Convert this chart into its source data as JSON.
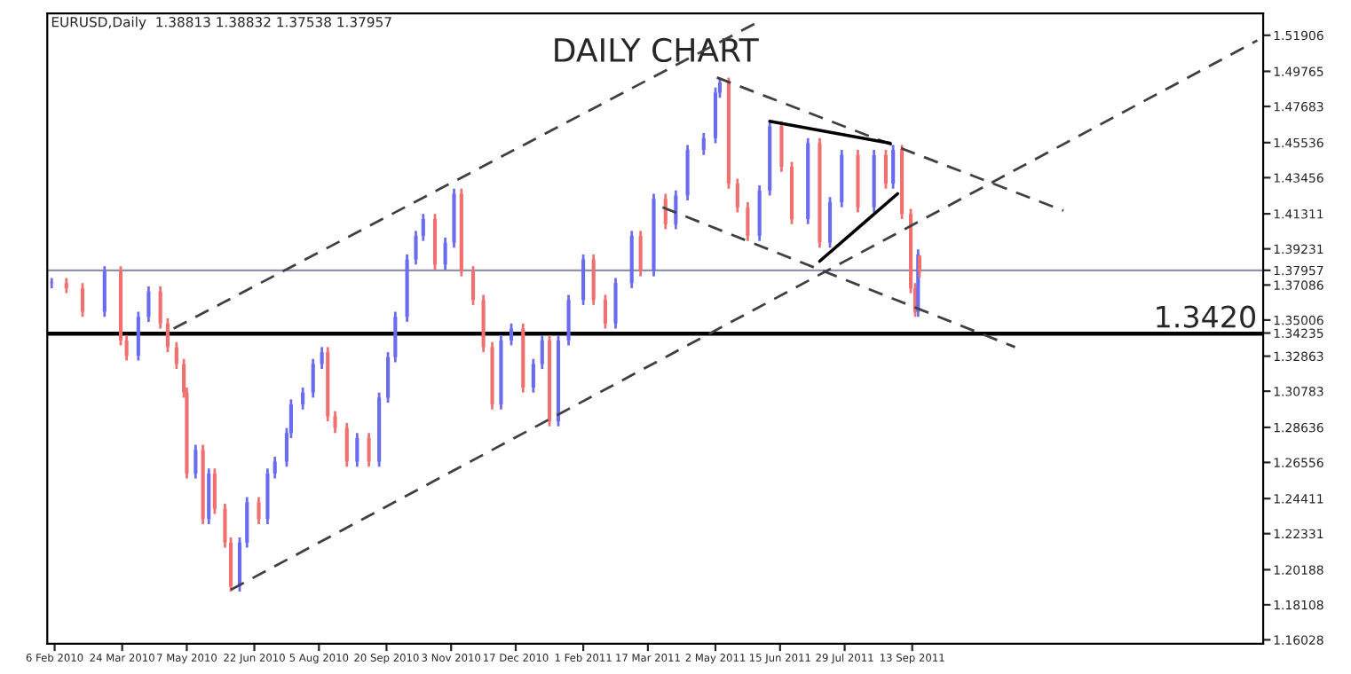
{
  "chart_data": {
    "type": "candlestick",
    "title": "DAILY CHART",
    "subtitle": "EURUSD,Daily  1.38813 1.38832 1.37538 1.37957",
    "x": [
      "2010-02-04",
      "2010-02-14",
      "2010-02-25",
      "2010-03-12",
      "2010-03-23",
      "2010-03-27",
      "2010-04-04",
      "2010-04-11",
      "2010-04-19",
      "2010-04-24",
      "2010-04-30",
      "2010-05-05",
      "2010-05-07",
      "2010-05-13",
      "2010-05-18",
      "2010-05-22",
      "2010-05-26",
      "2010-06-02",
      "2010-06-06",
      "2010-06-12",
      "2010-06-17",
      "2010-06-25",
      "2010-07-01",
      "2010-07-06",
      "2010-07-14",
      "2010-07-17",
      "2010-07-25",
      "2010-08-01",
      "2010-08-07",
      "2010-08-11",
      "2010-08-16",
      "2010-08-24",
      "2010-08-31",
      "2010-09-08",
      "2010-09-15",
      "2010-09-21",
      "2010-09-26",
      "2010-10-04",
      "2010-10-10",
      "2010-10-15",
      "2010-10-23",
      "2010-10-30",
      "2010-11-05",
      "2010-11-10",
      "2010-11-18",
      "2010-11-25",
      "2010-12-01",
      "2010-12-07",
      "2010-12-14",
      "2010-12-22",
      "2010-12-29",
      "2011-01-04",
      "2011-01-09",
      "2011-01-15",
      "2011-01-22",
      "2011-02-01",
      "2011-02-08",
      "2011-02-16",
      "2011-02-23",
      "2011-03-06",
      "2011-03-12",
      "2011-03-21",
      "2011-03-29",
      "2011-04-05",
      "2011-04-13",
      "2011-04-24",
      "2011-05-02",
      "2011-05-05",
      "2011-05-11",
      "2011-05-17",
      "2011-05-24",
      "2011-06-01",
      "2011-06-08",
      "2011-06-16",
      "2011-06-23",
      "2011-07-04",
      "2011-07-12",
      "2011-07-19",
      "2011-07-27",
      "2011-08-07",
      "2011-08-18",
      "2011-08-26",
      "2011-08-31",
      "2011-09-06",
      "2011-09-12",
      "2011-09-15",
      "2011-09-17",
      "2011-09-18"
    ],
    "ohlc": [
      [
        1.372,
        1.375,
        1.369,
        1.372
      ],
      [
        1.372,
        1.375,
        1.366,
        1.369
      ],
      [
        1.369,
        1.372,
        1.352,
        1.355
      ],
      [
        1.355,
        1.382,
        1.352,
        1.379
      ],
      [
        1.379,
        1.382,
        1.335,
        1.338
      ],
      [
        1.338,
        1.341,
        1.326,
        1.329
      ],
      [
        1.329,
        1.355,
        1.326,
        1.352
      ],
      [
        1.352,
        1.37,
        1.349,
        1.367
      ],
      [
        1.367,
        1.37,
        1.345,
        1.348
      ],
      [
        1.348,
        1.351,
        1.331,
        1.334
      ],
      [
        1.334,
        1.337,
        1.321,
        1.324
      ],
      [
        1.324,
        1.327,
        1.304,
        1.307
      ],
      [
        1.307,
        1.31,
        1.256,
        1.259
      ],
      [
        1.259,
        1.276,
        1.256,
        1.273
      ],
      [
        1.273,
        1.276,
        1.229,
        1.232
      ],
      [
        1.232,
        1.262,
        1.229,
        1.259
      ],
      [
        1.259,
        1.262,
        1.235,
        1.238
      ],
      [
        1.238,
        1.241,
        1.215,
        1.218
      ],
      [
        1.218,
        1.221,
        1.189,
        1.192
      ],
      [
        1.192,
        1.221,
        1.189,
        1.218
      ],
      [
        1.218,
        1.245,
        1.215,
        1.242
      ],
      [
        1.242,
        1.245,
        1.229,
        1.232
      ],
      [
        1.232,
        1.262,
        1.229,
        1.259
      ],
      [
        1.259,
        1.269,
        1.256,
        1.266
      ],
      [
        1.266,
        1.286,
        1.263,
        1.283
      ],
      [
        1.283,
        1.303,
        1.28,
        1.3
      ],
      [
        1.3,
        1.31,
        1.297,
        1.307
      ],
      [
        1.307,
        1.327,
        1.304,
        1.324
      ],
      [
        1.324,
        1.334,
        1.321,
        1.331
      ],
      [
        1.331,
        1.334,
        1.29,
        1.293
      ],
      [
        1.293,
        1.296,
        1.283,
        1.286
      ],
      [
        1.286,
        1.289,
        1.263,
        1.266
      ],
      [
        1.266,
        1.283,
        1.263,
        1.28
      ],
      [
        1.28,
        1.283,
        1.263,
        1.266
      ],
      [
        1.266,
        1.307,
        1.263,
        1.304
      ],
      [
        1.304,
        1.331,
        1.301,
        1.328
      ],
      [
        1.328,
        1.355,
        1.325,
        1.352
      ],
      [
        1.352,
        1.389,
        1.349,
        1.386
      ],
      [
        1.386,
        1.403,
        1.383,
        1.4
      ],
      [
        1.4,
        1.413,
        1.397,
        1.41
      ],
      [
        1.41,
        1.413,
        1.38,
        1.383
      ],
      [
        1.383,
        1.399,
        1.38,
        1.396
      ],
      [
        1.396,
        1.428,
        1.393,
        1.425
      ],
      [
        1.425,
        1.428,
        1.376,
        1.379
      ],
      [
        1.379,
        1.382,
        1.359,
        1.362
      ],
      [
        1.362,
        1.365,
        1.331,
        1.334
      ],
      [
        1.334,
        1.337,
        1.297,
        1.3
      ],
      [
        1.3,
        1.341,
        1.297,
        1.338
      ],
      [
        1.338,
        1.348,
        1.335,
        1.345
      ],
      [
        1.345,
        1.348,
        1.307,
        1.31
      ],
      [
        1.31,
        1.327,
        1.307,
        1.324
      ],
      [
        1.324,
        1.341,
        1.321,
        1.338
      ],
      [
        1.338,
        1.341,
        1.287,
        1.29
      ],
      [
        1.29,
        1.341,
        1.287,
        1.338
      ],
      [
        1.338,
        1.365,
        1.335,
        1.362
      ],
      [
        1.362,
        1.389,
        1.359,
        1.386
      ],
      [
        1.386,
        1.389,
        1.359,
        1.362
      ],
      [
        1.362,
        1.365,
        1.345,
        1.348
      ],
      [
        1.348,
        1.375,
        1.345,
        1.372
      ],
      [
        1.372,
        1.403,
        1.369,
        1.4
      ],
      [
        1.4,
        1.403,
        1.376,
        1.379
      ],
      [
        1.379,
        1.425,
        1.376,
        1.422
      ],
      [
        1.422,
        1.425,
        1.404,
        1.407
      ],
      [
        1.407,
        1.427,
        1.404,
        1.424
      ],
      [
        1.424,
        1.454,
        1.421,
        1.451
      ],
      [
        1.451,
        1.461,
        1.448,
        1.458
      ],
      [
        1.458,
        1.488,
        1.455,
        1.485
      ],
      [
        1.485,
        1.494,
        1.482,
        1.491
      ],
      [
        1.491,
        1.494,
        1.428,
        1.431
      ],
      [
        1.431,
        1.434,
        1.414,
        1.417
      ],
      [
        1.417,
        1.42,
        1.397,
        1.4
      ],
      [
        1.4,
        1.43,
        1.397,
        1.427
      ],
      [
        1.427,
        1.468,
        1.424,
        1.465
      ],
      [
        1.465,
        1.468,
        1.438,
        1.441
      ],
      [
        1.441,
        1.444,
        1.407,
        1.41
      ],
      [
        1.41,
        1.458,
        1.407,
        1.455
      ],
      [
        1.455,
        1.458,
        1.393,
        1.396
      ],
      [
        1.396,
        1.423,
        1.393,
        1.42
      ],
      [
        1.42,
        1.451,
        1.417,
        1.448
      ],
      [
        1.448,
        1.451,
        1.414,
        1.417
      ],
      [
        1.417,
        1.451,
        1.414,
        1.448
      ],
      [
        1.448,
        1.451,
        1.428,
        1.431
      ],
      [
        1.431,
        1.454,
        1.428,
        1.451
      ],
      [
        1.451,
        1.454,
        1.41,
        1.413
      ],
      [
        1.413,
        1.416,
        1.366,
        1.369
      ],
      [
        1.369,
        1.372,
        1.352,
        1.355
      ],
      [
        1.355,
        1.392,
        1.352,
        1.389
      ],
      [
        1.38813,
        1.38832,
        1.37538,
        1.37957
      ]
    ],
    "colors": [
      "#6b6bf0",
      "#f07070",
      "#f07070",
      "#6b6bf0",
      "#f07070",
      "#f07070",
      "#6b6bf0",
      "#6b6bf0",
      "#f07070",
      "#f07070",
      "#f07070",
      "#f07070",
      "#f07070",
      "#6b6bf0",
      "#f07070",
      "#6b6bf0",
      "#f07070",
      "#f07070",
      "#f07070",
      "#6b6bf0",
      "#6b6bf0",
      "#f07070",
      "#6b6bf0",
      "#6b6bf0",
      "#6b6bf0",
      "#6b6bf0",
      "#6b6bf0",
      "#6b6bf0",
      "#6b6bf0",
      "#f07070",
      "#f07070",
      "#f07070",
      "#6b6bf0",
      "#f07070",
      "#6b6bf0",
      "#6b6bf0",
      "#6b6bf0",
      "#6b6bf0",
      "#6b6bf0",
      "#6b6bf0",
      "#f07070",
      "#6b6bf0",
      "#6b6bf0",
      "#f07070",
      "#f07070",
      "#f07070",
      "#f07070",
      "#6b6bf0",
      "#6b6bf0",
      "#f07070",
      "#6b6bf0",
      "#6b6bf0",
      "#f07070",
      "#6b6bf0",
      "#6b6bf0",
      "#6b6bf0",
      "#f07070",
      "#f07070",
      "#6b6bf0",
      "#6b6bf0",
      "#f07070",
      "#6b6bf0",
      "#f07070",
      "#6b6bf0",
      "#6b6bf0",
      "#6b6bf0",
      "#6b6bf0",
      "#6b6bf0",
      "#f07070",
      "#f07070",
      "#f07070",
      "#6b6bf0",
      "#6b6bf0",
      "#f07070",
      "#f07070",
      "#6b6bf0",
      "#f07070",
      "#6b6bf0",
      "#6b6bf0",
      "#f07070",
      "#6b6bf0",
      "#f07070",
      "#6b6bf0",
      "#f07070",
      "#f07070",
      "#f07070",
      "#6b6bf0",
      "#f07070"
    ],
    "series": [
      {
        "type": "line",
        "color": "#404040",
        "line_style": "dashed",
        "x": [
          "2010-04-28",
          "2011-05-29"
        ],
        "values": [
          1.345,
          1.526
        ]
      },
      {
        "type": "line",
        "color": "#404040",
        "line_style": "dashed",
        "x": [
          "2010-06-06",
          "2012-05-05"
        ],
        "values": [
          1.19,
          1.516
        ]
      },
      {
        "type": "line",
        "color": "#404040",
        "line_style": "dashed",
        "x": [
          "2011-05-03",
          "2011-12-25"
        ],
        "values": [
          1.494,
          1.415
        ]
      },
      {
        "type": "line",
        "color": "#404040",
        "line_style": "dashed",
        "x": [
          "2011-03-27",
          "2011-11-22"
        ],
        "values": [
          1.417,
          1.334
        ]
      },
      {
        "type": "line",
        "color": "#000000",
        "line_style": "solid",
        "x": [
          "2011-06-08",
          "2011-08-29"
        ],
        "values": [
          1.468,
          1.455
        ]
      },
      {
        "type": "line",
        "color": "#000000",
        "line_style": "solid",
        "x": [
          "2011-07-12",
          "2011-09-03"
        ],
        "values": [
          1.385,
          1.425
        ]
      }
    ],
    "ref_lines": [
      {
        "axis": "y",
        "value": 1.342,
        "label": "1.3420",
        "color": "#000000",
        "line_style": "solid"
      },
      {
        "axis": "y",
        "value": 1.37957,
        "color": "#9090a8",
        "line_style": "solid"
      }
    ],
    "xlim": [
      "2010-02-01",
      "2012-05-09"
    ],
    "xticks": [
      {
        "value": "2010-02-06",
        "label": "6 Feb 2010"
      },
      {
        "value": "2010-03-24",
        "label": "24 Mar 2010"
      },
      {
        "value": "2010-05-07",
        "label": "7 May 2010"
      },
      {
        "value": "2010-06-22",
        "label": "22 Jun 2010"
      },
      {
        "value": "2010-08-05",
        "label": "5 Aug 2010"
      },
      {
        "value": "2010-09-20",
        "label": "20 Sep 2010"
      },
      {
        "value": "2010-11-03",
        "label": "3 Nov 2010"
      },
      {
        "value": "2010-12-17",
        "label": "17 Dec 2010"
      },
      {
        "value": "2011-02-01",
        "label": "1 Feb 2011"
      },
      {
        "value": "2011-03-17",
        "label": "17 Mar 2011"
      },
      {
        "value": "2011-05-02",
        "label": "2 May 2011"
      },
      {
        "value": "2011-06-15",
        "label": "15 Jun 2011"
      },
      {
        "value": "2011-07-29",
        "label": "29 Jul 2011"
      },
      {
        "value": "2011-09-13",
        "label": "13 Sep 2011"
      }
    ],
    "ylim": [
      1.158,
      1.532
    ],
    "yticks": [
      1.16028,
      1.18108,
      1.20188,
      1.22331,
      1.24411,
      1.26556,
      1.28636,
      1.30783,
      1.32863,
      1.34235,
      1.35006,
      1.37086,
      1.37957,
      1.39231,
      1.41311,
      1.43456,
      1.45536,
      1.47683,
      1.49765,
      1.51906
    ],
    "grid": false,
    "legend": false
  }
}
